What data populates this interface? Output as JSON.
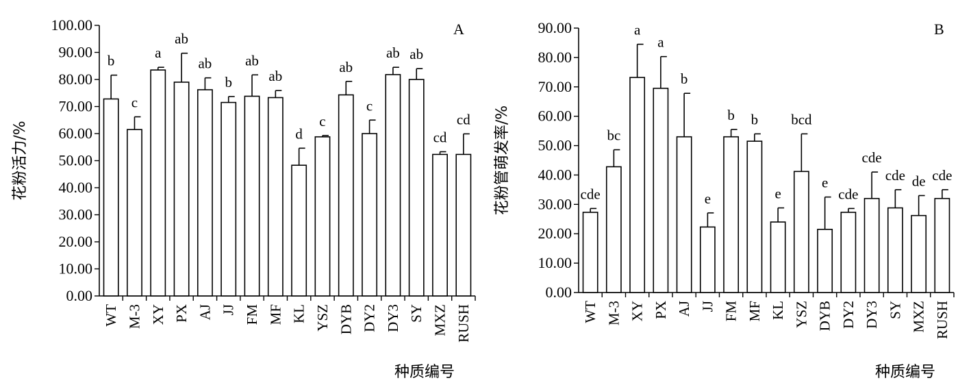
{
  "chart_data": [
    {
      "type": "bar",
      "panel_label": "A",
      "ylabel": "花粉活力/%",
      "xlabel": "种质编号",
      "ylim": [
        0,
        100
      ],
      "yticks": [
        "0.00",
        "10.00",
        "20.00",
        "30.00",
        "40.00",
        "50.00",
        "60.00",
        "70.00",
        "80.00",
        "90.00",
        "100.00"
      ],
      "categories": [
        "WT",
        "M-3",
        "XY",
        "PX",
        "AJ",
        "JJ",
        "FM",
        "MF",
        "KL",
        "YSZ",
        "DYB",
        "DY2",
        "DY3",
        "SY",
        "MXZ",
        "RUSH"
      ],
      "values": [
        72.8,
        61.5,
        83.5,
        79.0,
        76.2,
        71.5,
        73.8,
        73.3,
        48.3,
        58.8,
        74.3,
        60.0,
        81.8,
        80.0,
        52.3,
        52.3
      ],
      "errors": [
        8.8,
        4.7,
        1.0,
        10.7,
        4.4,
        2.2,
        7.9,
        2.6,
        6.3,
        0.5,
        5.0,
        5.0,
        2.7,
        4.0,
        1.0,
        7.6
      ],
      "significance": [
        "b",
        "c",
        "a",
        "ab",
        "ab",
        "b",
        "ab",
        "ab",
        "d",
        "c",
        "ab",
        "c",
        "ab",
        "ab",
        "cd",
        "cd"
      ],
      "grid": false,
      "legend": "none"
    },
    {
      "type": "bar",
      "panel_label": "B",
      "ylabel": "花粉管萌发率/%",
      "xlabel": "种质编号",
      "ylim": [
        0,
        90
      ],
      "yticks": [
        "0.00",
        "10.00",
        "20.00",
        "30.00",
        "40.00",
        "50.00",
        "60.00",
        "70.00",
        "80.00",
        "90.00"
      ],
      "categories": [
        "WT",
        "M-3",
        "XY",
        "PX",
        "AJ",
        "JJ",
        "FM",
        "MF",
        "KL",
        "YSZ",
        "DYB",
        "DY2",
        "DY3",
        "SY",
        "MXZ",
        "RUSH"
      ],
      "values": [
        27.3,
        42.8,
        73.2,
        69.5,
        53.0,
        22.3,
        53.0,
        51.5,
        24.0,
        41.2,
        21.5,
        27.3,
        32.0,
        28.8,
        26.2,
        32.0
      ],
      "errors": [
        1.3,
        5.8,
        11.3,
        10.8,
        14.8,
        4.8,
        2.5,
        2.5,
        4.8,
        12.8,
        11.0,
        1.3,
        9.0,
        6.2,
        6.8,
        3.0
      ],
      "significance": [
        "cde",
        "bc",
        "a",
        "a",
        "b",
        "e",
        "b",
        "b",
        "e",
        "bcd",
        "e",
        "cde",
        "cde",
        "cde",
        "de",
        "cde"
      ],
      "grid": false,
      "legend": "none"
    }
  ]
}
